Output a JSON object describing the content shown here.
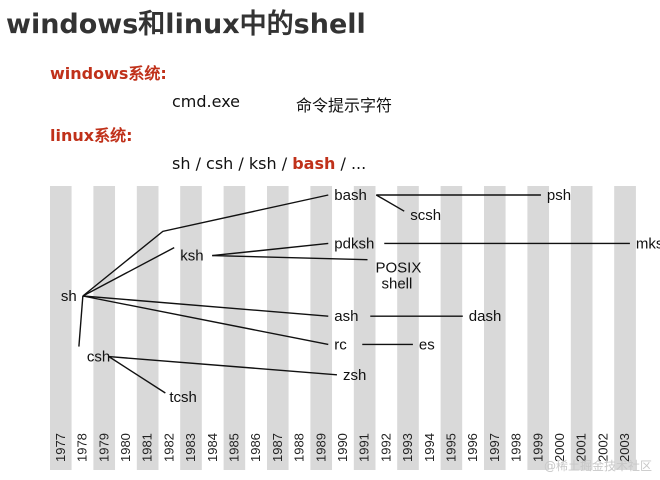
{
  "title": "windows和linux中的shell",
  "windows": {
    "label": "windows系统:",
    "command": "cmd.exe",
    "description": "命令提示字符"
  },
  "linux": {
    "label": "linux系统:",
    "shells": [
      {
        "text": "sh",
        "highlight": false
      },
      {
        "text": " / ",
        "highlight": false
      },
      {
        "text": "csh",
        "highlight": false
      },
      {
        "text": " / ",
        "highlight": false
      },
      {
        "text": "ksh",
        "highlight": false
      },
      {
        "text": " / ",
        "highlight": false
      },
      {
        "text": "bash",
        "highlight": true
      },
      {
        "text": " / ...",
        "highlight": false
      }
    ]
  },
  "timeline": {
    "years": [
      "1977",
      "1978",
      "1979",
      "1980",
      "1981",
      "1982",
      "1983",
      "1984",
      "1985",
      "1986",
      "1987",
      "1988",
      "1989",
      "1990",
      "1991",
      "1992",
      "1993",
      "1994",
      "1995",
      "1996",
      "1997",
      "1998",
      "1999",
      "2000",
      "2001",
      "2002",
      "2003"
    ],
    "nodes": [
      {
        "id": "sh",
        "label": "sh",
        "year": 1977,
        "row": 6
      },
      {
        "id": "csh",
        "label": "csh",
        "year": 1978.2,
        "row": 9
      },
      {
        "id": "tcsh",
        "label": "tcsh",
        "year": 1982,
        "row": 11
      },
      {
        "id": "ksh",
        "label": "ksh",
        "year": 1982.5,
        "row": 4
      },
      {
        "id": "bash",
        "label": "bash",
        "year": 1989.6,
        "row": 1
      },
      {
        "id": "scsh",
        "label": "scsh",
        "year": 1993.1,
        "row": 2
      },
      {
        "id": "psh",
        "label": "psh",
        "year": 1999.4,
        "row": 1
      },
      {
        "id": "pdksh",
        "label": "pdksh",
        "year": 1989.6,
        "row": 3.4
      },
      {
        "id": "mksh",
        "label": "mksh",
        "year": 2003.5,
        "row": 3.4
      },
      {
        "id": "posix",
        "label": "POSIX",
        "label2": "shell",
        "year": 1991.5,
        "row": 4.6
      },
      {
        "id": "ash",
        "label": "ash",
        "year": 1989.6,
        "row": 7
      },
      {
        "id": "dash",
        "label": "dash",
        "year": 1995.8,
        "row": 7
      },
      {
        "id": "rc",
        "label": "rc",
        "year": 1989.6,
        "row": 8.4
      },
      {
        "id": "es",
        "label": "es",
        "year": 1993.5,
        "row": 8.4
      },
      {
        "id": "zsh",
        "label": "zsh",
        "year": 1990,
        "row": 9.9
      }
    ],
    "edges": [
      [
        "sh",
        "bash"
      ],
      [
        "sh",
        "ksh"
      ],
      [
        "sh",
        "ash"
      ],
      [
        "sh",
        "rc"
      ],
      [
        "sh",
        "csh"
      ],
      [
        "ksh",
        "pdksh"
      ],
      [
        "ksh",
        "posix"
      ],
      [
        "bash",
        "scsh"
      ],
      [
        "bash",
        "psh"
      ],
      [
        "pdksh",
        "mksh"
      ],
      [
        "ash",
        "dash"
      ],
      [
        "rc",
        "es"
      ],
      [
        "csh",
        "zsh"
      ],
      [
        "csh",
        "tcsh"
      ]
    ]
  },
  "watermark": "@稀土掘金技术社区"
}
